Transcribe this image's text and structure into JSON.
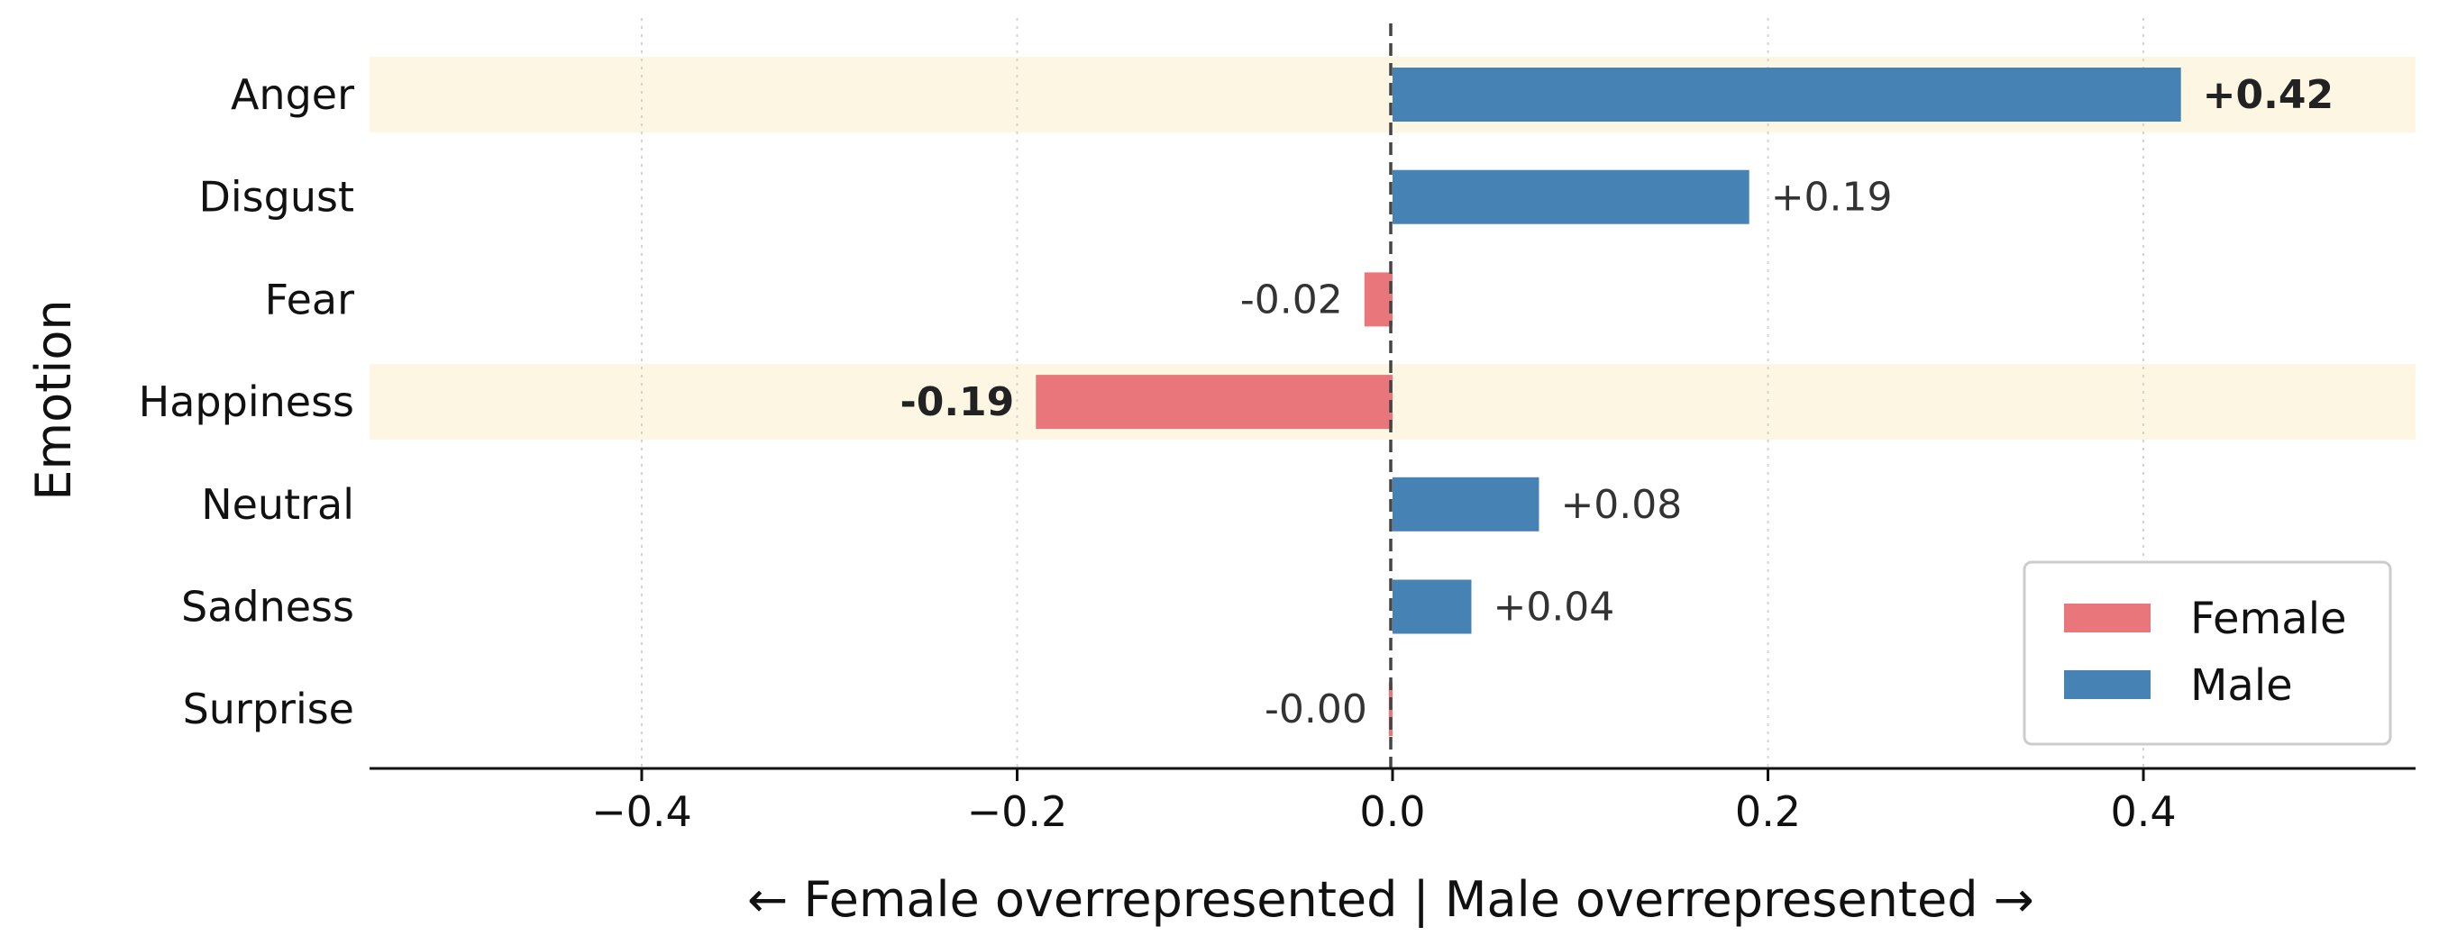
{
  "chart_data": {
    "type": "bar",
    "orientation": "horizontal",
    "categories": [
      "Anger",
      "Disgust",
      "Fear",
      "Happiness",
      "Neutral",
      "Sadness",
      "Surprise"
    ],
    "values": [
      0.42,
      0.19,
      -0.015,
      -0.19,
      0.078,
      0.042,
      -0.002
    ],
    "value_labels": [
      "+0.42",
      "+0.19",
      "-0.02",
      "-0.19",
      "+0.08",
      "+0.04",
      "-0.00"
    ],
    "bold_labels": [
      true,
      false,
      false,
      true,
      false,
      false,
      false
    ],
    "highlighted_categories": [
      "Anger",
      "Happiness"
    ],
    "highlight_color": "#fdf6e3",
    "series": [
      {
        "name": "Female",
        "color": "#e8767a"
      },
      {
        "name": "Male",
        "color": "#4682b4"
      }
    ],
    "xlabel": "← Female overrepresented  |  Male overrepresented →",
    "ylabel": "Emotion",
    "xlim": [
      -0.545,
      0.545
    ],
    "xticks": [
      -0.4,
      -0.2,
      0.0,
      0.2,
      0.4
    ],
    "xtick_labels": [
      "−0.4",
      "−0.2",
      "0.0",
      "0.2",
      "0.4"
    ],
    "grid": "x-dotted",
    "zero_line": "dashed",
    "legend_position": "lower-right"
  }
}
